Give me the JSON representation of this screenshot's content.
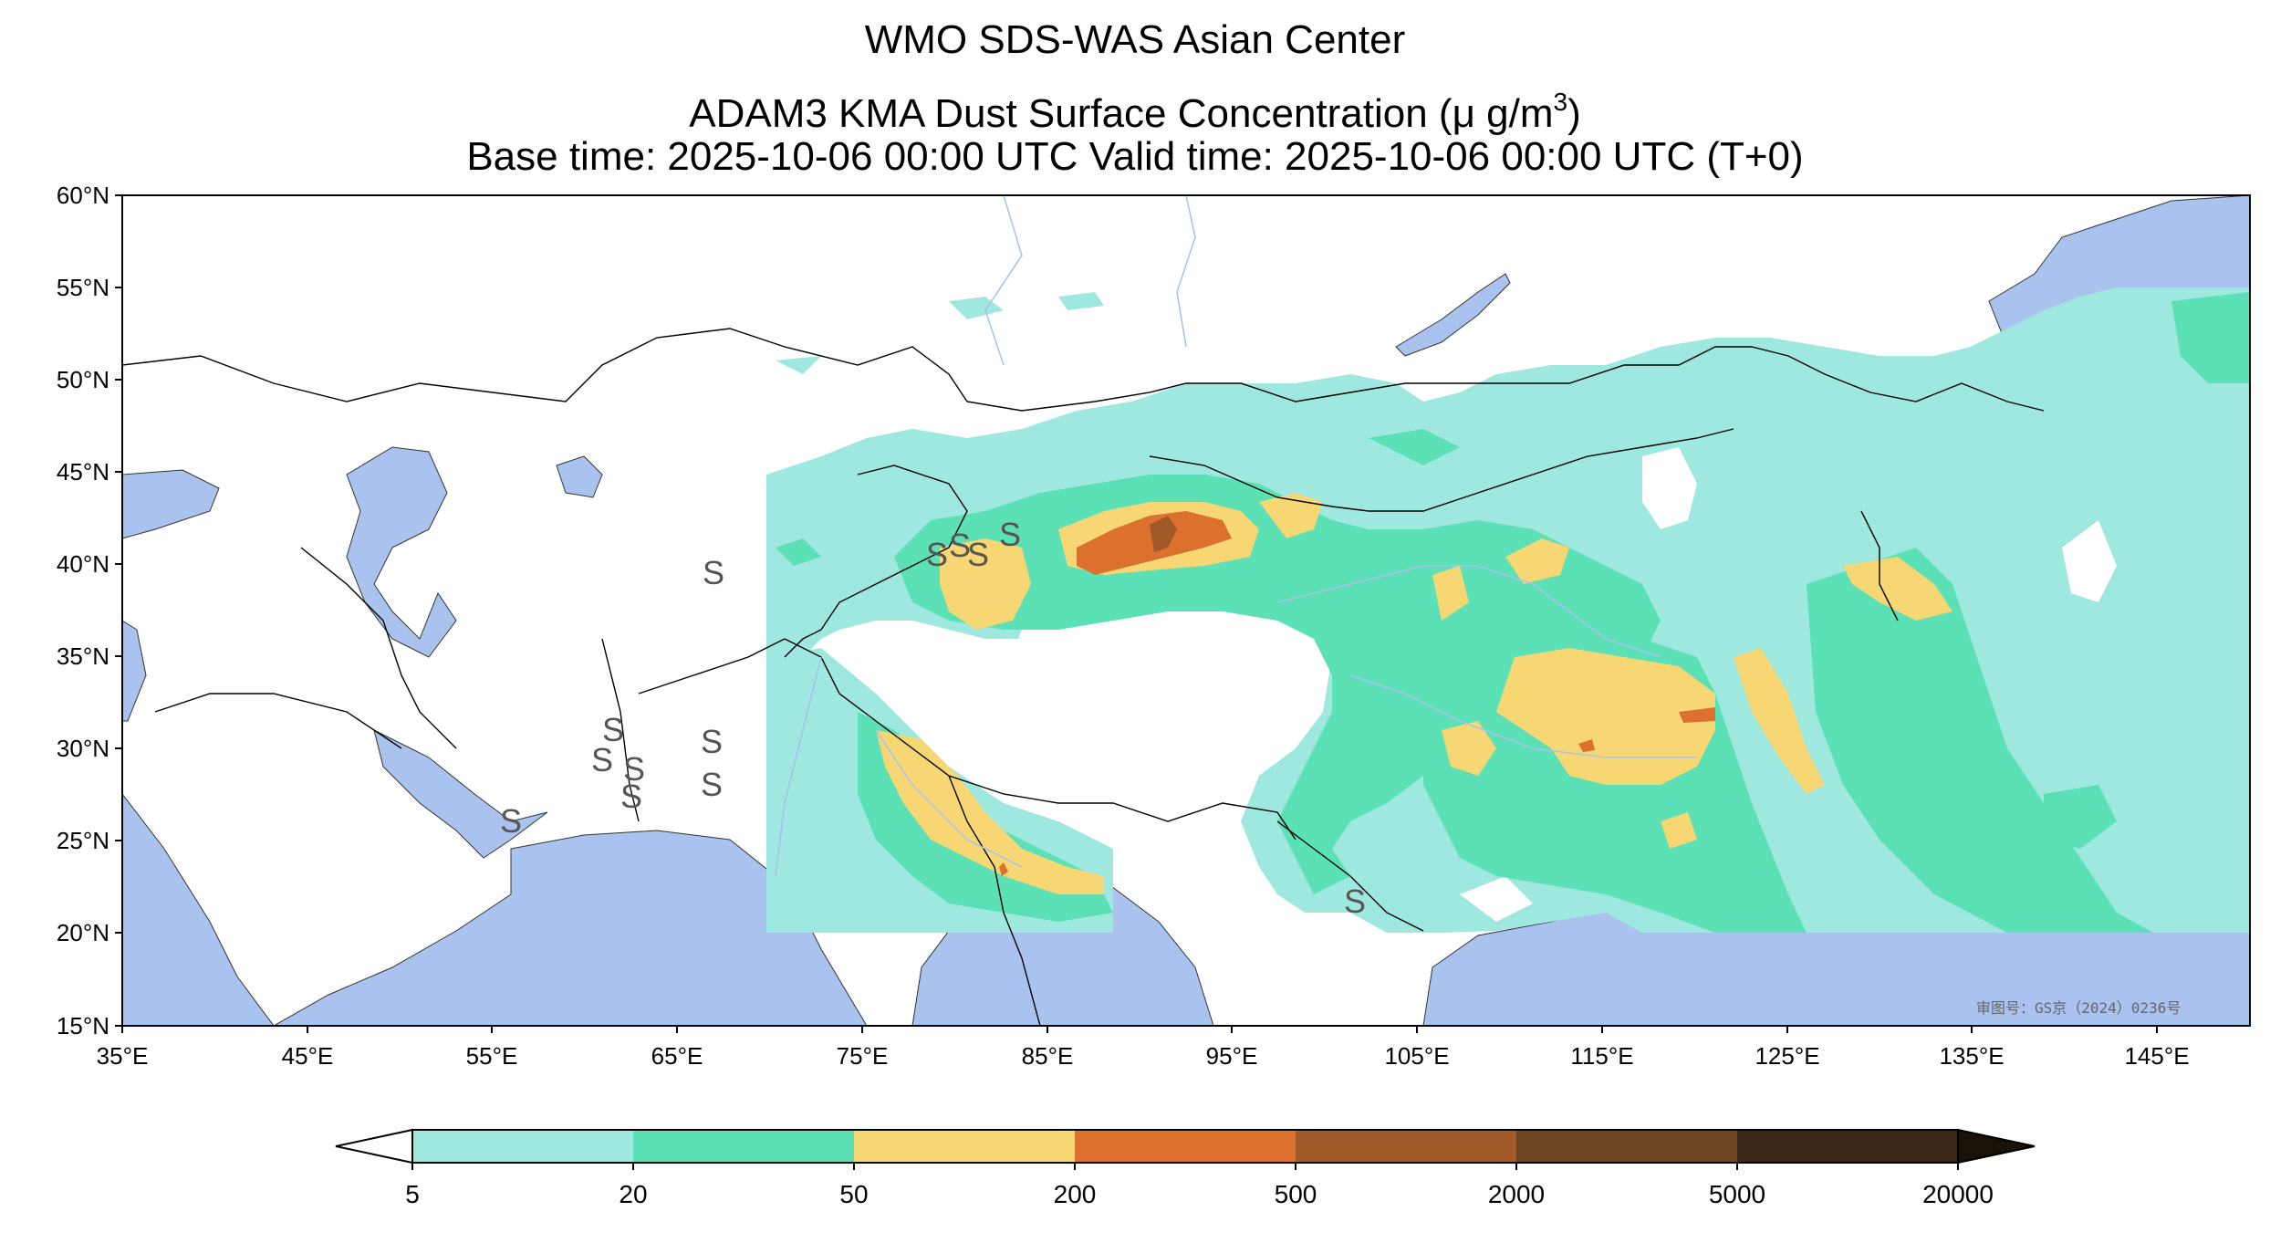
{
  "title": {
    "line1": "WMO SDS-WAS Asian Center",
    "line2_prefix": "ADAM3 KMA Dust Surface Concentration (",
    "line2_unit": "μ g/m",
    "line2_sup": "3",
    "line2_suffix": ")",
    "line3": "Base time: 2025-10-06 00:00 UTC Valid time: 2025-10-06 00:00 UTC (T+0)"
  },
  "map": {
    "lon_range": [
      35,
      150
    ],
    "lat_range": [
      15,
      60
    ],
    "lon_ticks": [
      "35°E",
      "45°E",
      "55°E",
      "65°E",
      "75°E",
      "85°E",
      "95°E",
      "105°E",
      "115°E",
      "125°E",
      "135°E",
      "145°E"
    ],
    "lat_ticks": [
      "60°N",
      "55°N",
      "50°N",
      "45°N",
      "40°N",
      "35°N",
      "30°N",
      "25°N",
      "20°N",
      "15°N"
    ],
    "credit": "审图号：GS京（2024）0236号",
    "colors": {
      "ocean": "#a9c3ee",
      "land": "#ffffff",
      "border": "#000000",
      "river": "#a9c3ee"
    }
  },
  "colorbar": {
    "ticks": [
      "5",
      "20",
      "50",
      "200",
      "500",
      "2000",
      "5000",
      "20000"
    ],
    "colors": [
      "#9ee8df",
      "#5ce0b5",
      "#f7d674",
      "#dc702f",
      "#9f5a27",
      "#6d4420",
      "#3b2514"
    ]
  }
}
